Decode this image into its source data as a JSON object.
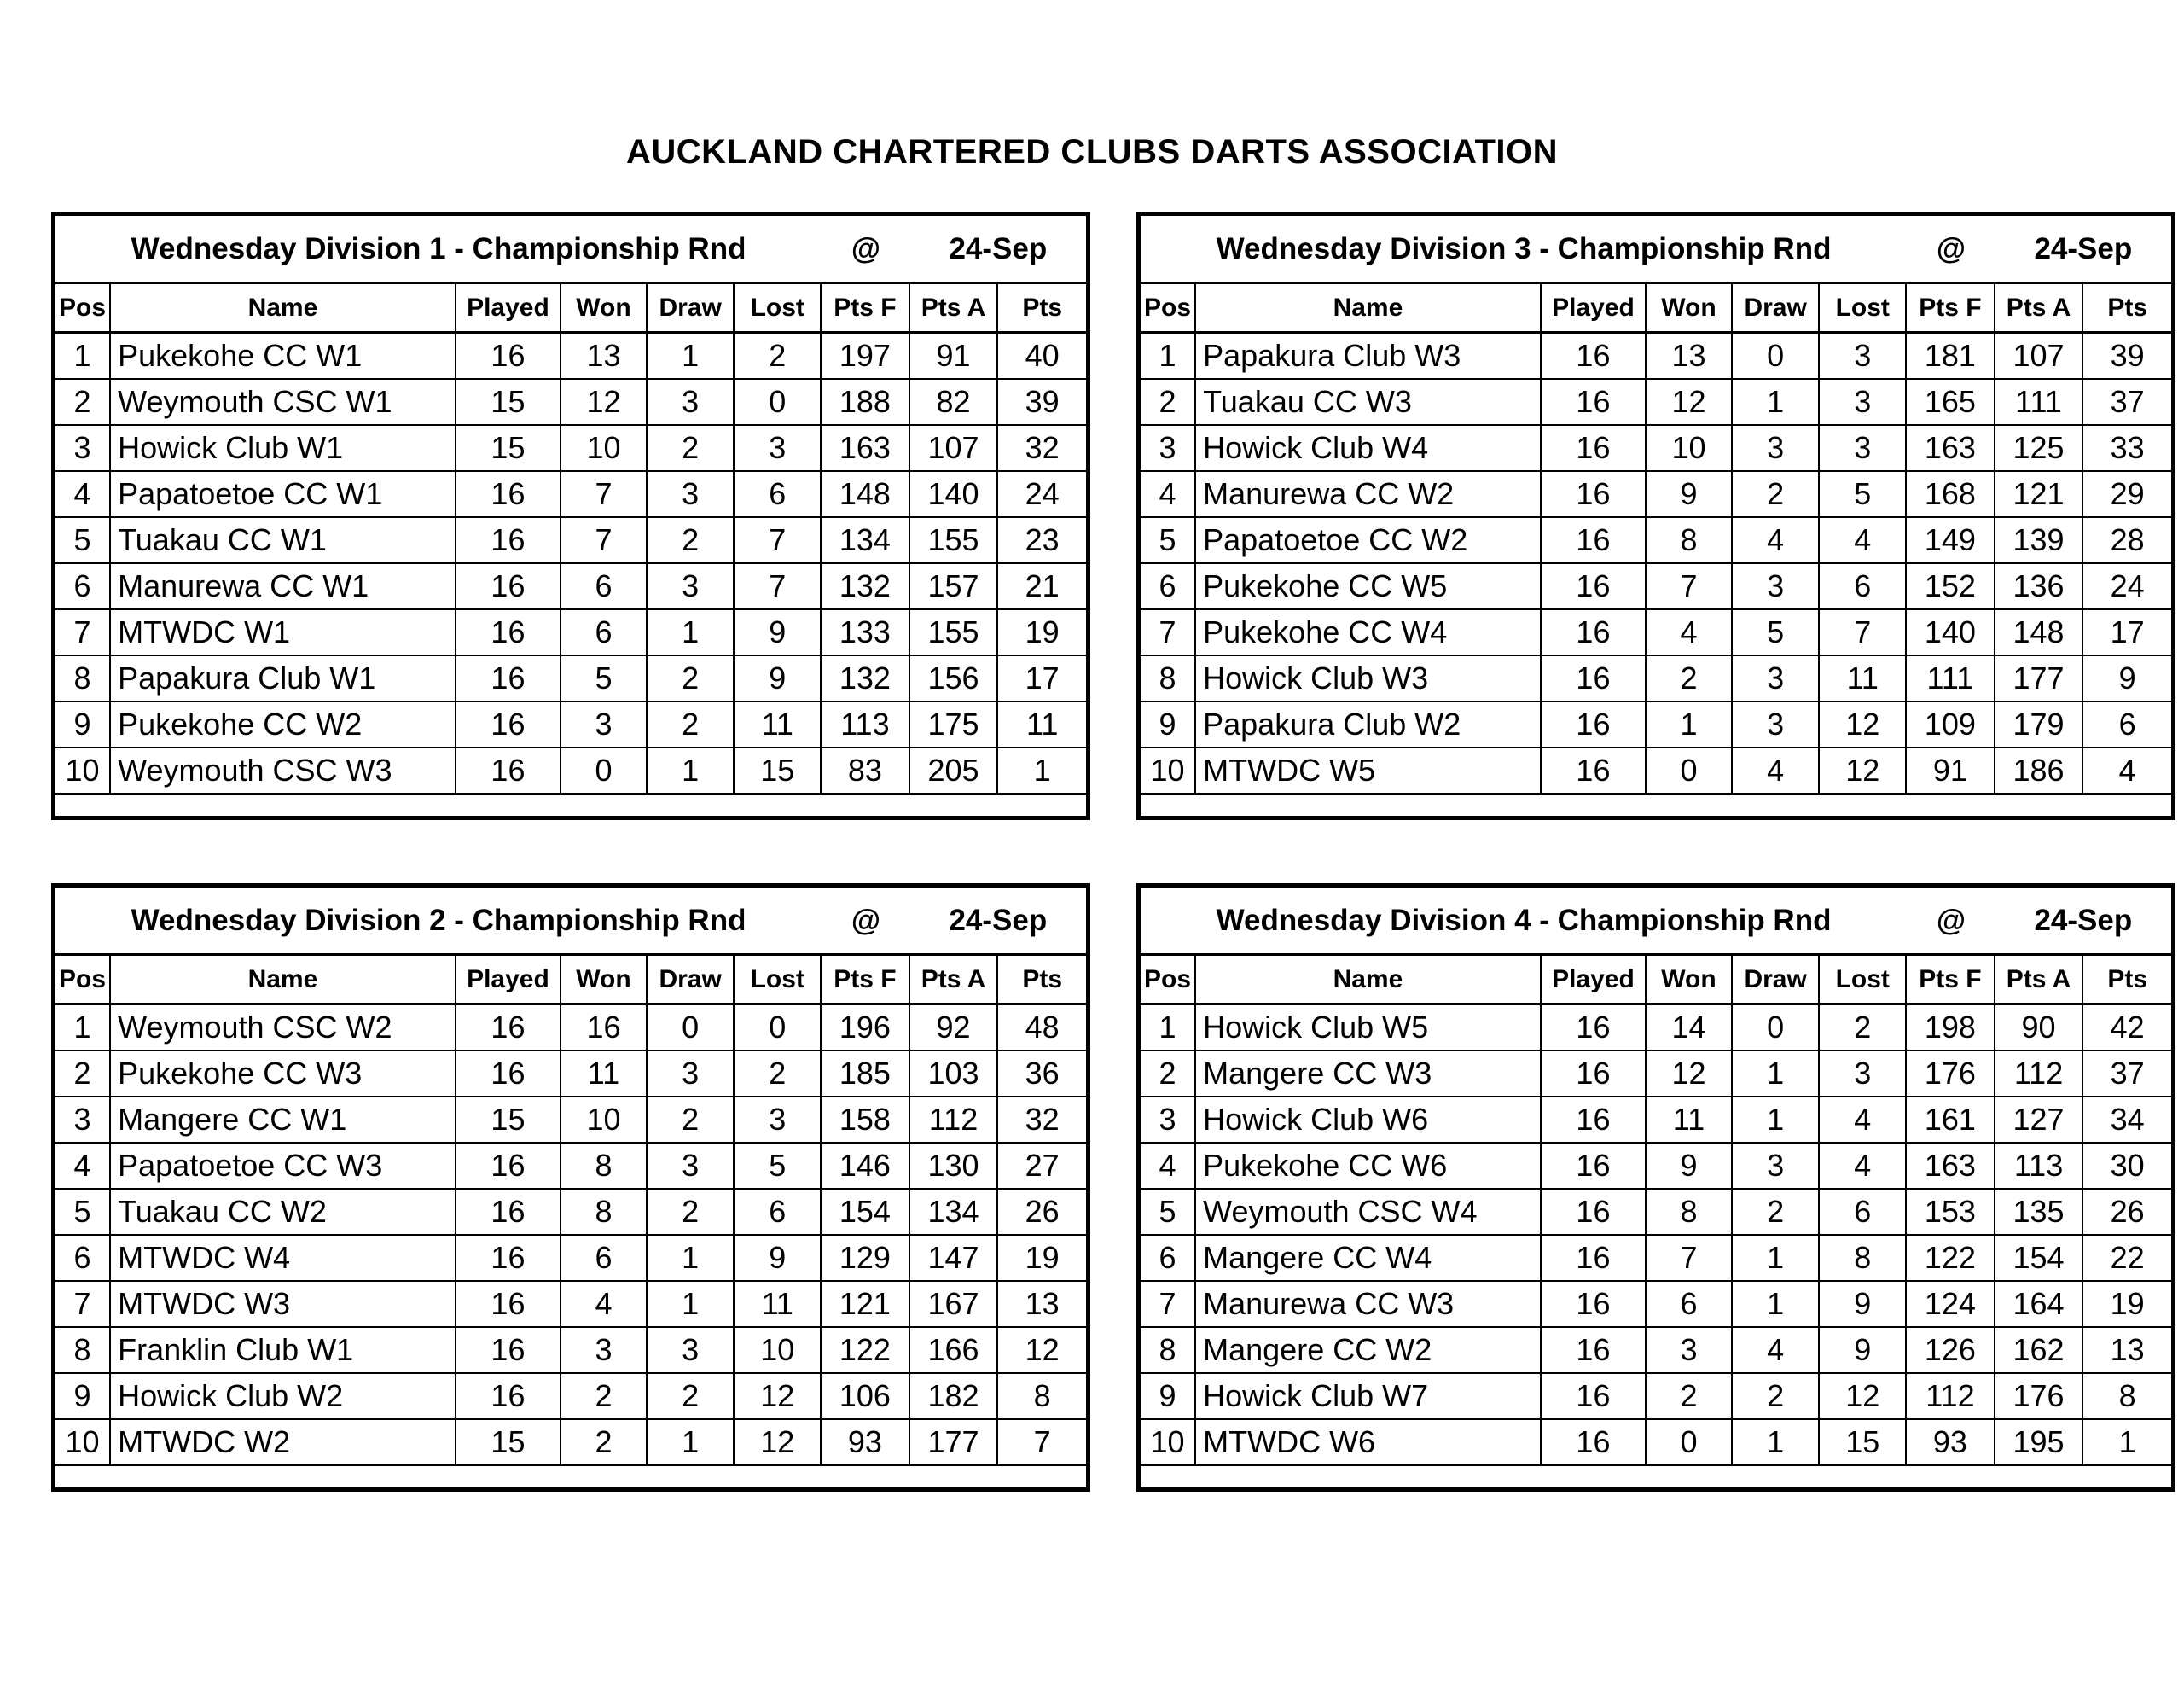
{
  "page_title": "AUCKLAND CHARTERED CLUBS DARTS ASSOCIATION",
  "columns": [
    "Pos",
    "Name",
    "Played",
    "Won",
    "Draw",
    "Lost",
    "Pts F",
    "Pts A",
    "Pts"
  ],
  "tables": [
    {
      "title": "Wednesday Division 1 - Championship Rnd",
      "at": "@",
      "date": "24-Sep",
      "rows": [
        [
          "1",
          "Pukekohe CC W1",
          "16",
          "13",
          "1",
          "2",
          "197",
          "91",
          "40"
        ],
        [
          "2",
          "Weymouth CSC W1",
          "15",
          "12",
          "3",
          "0",
          "188",
          "82",
          "39"
        ],
        [
          "3",
          "Howick Club W1",
          "15",
          "10",
          "2",
          "3",
          "163",
          "107",
          "32"
        ],
        [
          "4",
          "Papatoetoe CC W1",
          "16",
          "7",
          "3",
          "6",
          "148",
          "140",
          "24"
        ],
        [
          "5",
          "Tuakau CC W1",
          "16",
          "7",
          "2",
          "7",
          "134",
          "155",
          "23"
        ],
        [
          "6",
          "Manurewa CC W1",
          "16",
          "6",
          "3",
          "7",
          "132",
          "157",
          "21"
        ],
        [
          "7",
          "MTWDC W1",
          "16",
          "6",
          "1",
          "9",
          "133",
          "155",
          "19"
        ],
        [
          "8",
          "Papakura Club W1",
          "16",
          "5",
          "2",
          "9",
          "132",
          "156",
          "17"
        ],
        [
          "9",
          "Pukekohe CC W2",
          "16",
          "3",
          "2",
          "11",
          "113",
          "175",
          "11"
        ],
        [
          "10",
          "Weymouth CSC W3",
          "16",
          "0",
          "1",
          "15",
          "83",
          "205",
          "1"
        ]
      ]
    },
    {
      "title": "Wednesday Division 3 - Championship Rnd",
      "at": "@",
      "date": "24-Sep",
      "rows": [
        [
          "1",
          "Papakura Club W3",
          "16",
          "13",
          "0",
          "3",
          "181",
          "107",
          "39"
        ],
        [
          "2",
          "Tuakau CC W3",
          "16",
          "12",
          "1",
          "3",
          "165",
          "111",
          "37"
        ],
        [
          "3",
          "Howick Club W4",
          "16",
          "10",
          "3",
          "3",
          "163",
          "125",
          "33"
        ],
        [
          "4",
          "Manurewa CC W2",
          "16",
          "9",
          "2",
          "5",
          "168",
          "121",
          "29"
        ],
        [
          "5",
          "Papatoetoe CC W2",
          "16",
          "8",
          "4",
          "4",
          "149",
          "139",
          "28"
        ],
        [
          "6",
          "Pukekohe CC W5",
          "16",
          "7",
          "3",
          "6",
          "152",
          "136",
          "24"
        ],
        [
          "7",
          "Pukekohe CC W4",
          "16",
          "4",
          "5",
          "7",
          "140",
          "148",
          "17"
        ],
        [
          "8",
          "Howick Club W3",
          "16",
          "2",
          "3",
          "11",
          "111",
          "177",
          "9"
        ],
        [
          "9",
          "Papakura Club W2",
          "16",
          "1",
          "3",
          "12",
          "109",
          "179",
          "6"
        ],
        [
          "10",
          "MTWDC W5",
          "16",
          "0",
          "4",
          "12",
          "91",
          "186",
          "4"
        ]
      ]
    },
    {
      "title": "Wednesday Division 2 - Championship Rnd",
      "at": "@",
      "date": "24-Sep",
      "rows": [
        [
          "1",
          "Weymouth CSC W2",
          "16",
          "16",
          "0",
          "0",
          "196",
          "92",
          "48"
        ],
        [
          "2",
          "Pukekohe CC W3",
          "16",
          "11",
          "3",
          "2",
          "185",
          "103",
          "36"
        ],
        [
          "3",
          "Mangere CC W1",
          "15",
          "10",
          "2",
          "3",
          "158",
          "112",
          "32"
        ],
        [
          "4",
          "Papatoetoe CC W3",
          "16",
          "8",
          "3",
          "5",
          "146",
          "130",
          "27"
        ],
        [
          "5",
          "Tuakau CC W2",
          "16",
          "8",
          "2",
          "6",
          "154",
          "134",
          "26"
        ],
        [
          "6",
          "MTWDC W4",
          "16",
          "6",
          "1",
          "9",
          "129",
          "147",
          "19"
        ],
        [
          "7",
          "MTWDC W3",
          "16",
          "4",
          "1",
          "11",
          "121",
          "167",
          "13"
        ],
        [
          "8",
          "Franklin Club W1",
          "16",
          "3",
          "3",
          "10",
          "122",
          "166",
          "12"
        ],
        [
          "9",
          "Howick Club W2",
          "16",
          "2",
          "2",
          "12",
          "106",
          "182",
          "8"
        ],
        [
          "10",
          "MTWDC W2",
          "15",
          "2",
          "1",
          "12",
          "93",
          "177",
          "7"
        ]
      ]
    },
    {
      "title": "Wednesday Division 4 - Championship Rnd",
      "at": "@",
      "date": "24-Sep",
      "rows": [
        [
          "1",
          "Howick Club W5",
          "16",
          "14",
          "0",
          "2",
          "198",
          "90",
          "42"
        ],
        [
          "2",
          "Mangere CC W3",
          "16",
          "12",
          "1",
          "3",
          "176",
          "112",
          "37"
        ],
        [
          "3",
          "Howick Club W6",
          "16",
          "11",
          "1",
          "4",
          "161",
          "127",
          "34"
        ],
        [
          "4",
          "Pukekohe CC W6",
          "16",
          "9",
          "3",
          "4",
          "163",
          "113",
          "30"
        ],
        [
          "5",
          "Weymouth CSC W4",
          "16",
          "8",
          "2",
          "6",
          "153",
          "135",
          "26"
        ],
        [
          "6",
          "Mangere CC W4",
          "16",
          "7",
          "1",
          "8",
          "122",
          "154",
          "22"
        ],
        [
          "7",
          "Manurewa CC W3",
          "16",
          "6",
          "1",
          "9",
          "124",
          "164",
          "19"
        ],
        [
          "8",
          "Mangere CC W2",
          "16",
          "3",
          "4",
          "9",
          "126",
          "162",
          "13"
        ],
        [
          "9",
          "Howick Club W7",
          "16",
          "2",
          "2",
          "12",
          "112",
          "176",
          "8"
        ],
        [
          "10",
          "MTWDC W6",
          "16",
          "0",
          "1",
          "15",
          "93",
          "195",
          "1"
        ]
      ]
    }
  ]
}
